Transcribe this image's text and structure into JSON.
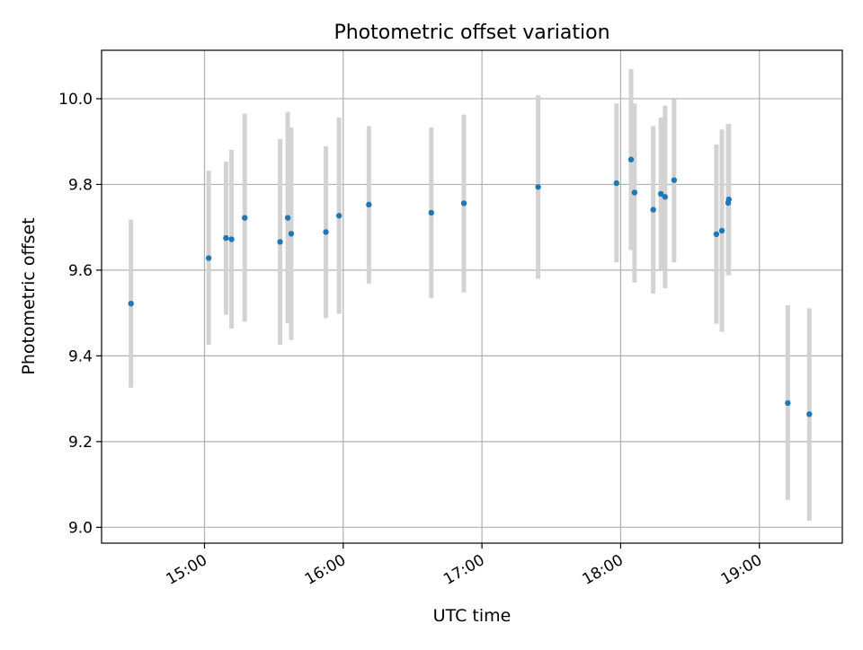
{
  "chart_data": {
    "type": "scatter",
    "title": "Photometric offset variation",
    "xlabel": "UTC time",
    "ylabel": "Photometric offset",
    "x_ticks": [
      {
        "value": 15,
        "label": "15:00"
      },
      {
        "value": 16,
        "label": "16:00"
      },
      {
        "value": 17,
        "label": "17:00"
      },
      {
        "value": 18,
        "label": "18:00"
      },
      {
        "value": 19,
        "label": "19:00"
      }
    ],
    "y_ticks": [
      {
        "value": 9.0,
        "label": "9.0"
      },
      {
        "value": 9.2,
        "label": "9.2"
      },
      {
        "value": 9.4,
        "label": "9.4"
      },
      {
        "value": 9.6,
        "label": "9.6"
      },
      {
        "value": 9.8,
        "label": "9.8"
      },
      {
        "value": 10.0,
        "label": "10.0"
      }
    ],
    "xlim": [
      14.258,
      19.598
    ],
    "ylim": [
      8.963,
      10.113
    ],
    "grid": true,
    "colors": {
      "point": "#1f77b4",
      "errorbar": "#d3d3d3",
      "grid": "#b0b0b0"
    },
    "points": [
      {
        "x": 14.47,
        "y": 9.522,
        "lo": 9.326,
        "hi": 9.718
      },
      {
        "x": 15.03,
        "y": 9.628,
        "lo": 9.426,
        "hi": 9.832
      },
      {
        "x": 15.155,
        "y": 9.675,
        "lo": 9.496,
        "hi": 9.853
      },
      {
        "x": 15.195,
        "y": 9.672,
        "lo": 9.464,
        "hi": 9.881
      },
      {
        "x": 15.29,
        "y": 9.722,
        "lo": 9.48,
        "hi": 9.965
      },
      {
        "x": 15.545,
        "y": 9.666,
        "lo": 9.426,
        "hi": 9.906
      },
      {
        "x": 15.6,
        "y": 9.722,
        "lo": 9.476,
        "hi": 9.969
      },
      {
        "x": 15.625,
        "y": 9.685,
        "lo": 9.437,
        "hi": 9.933
      },
      {
        "x": 15.875,
        "y": 9.689,
        "lo": 9.488,
        "hi": 9.889
      },
      {
        "x": 15.97,
        "y": 9.727,
        "lo": 9.498,
        "hi": 9.956
      },
      {
        "x": 16.185,
        "y": 9.753,
        "lo": 9.569,
        "hi": 9.936
      },
      {
        "x": 16.635,
        "y": 9.734,
        "lo": 9.535,
        "hi": 9.933
      },
      {
        "x": 16.87,
        "y": 9.756,
        "lo": 9.548,
        "hi": 9.963
      },
      {
        "x": 17.405,
        "y": 9.794,
        "lo": 9.58,
        "hi": 10.008
      },
      {
        "x": 17.97,
        "y": 9.803,
        "lo": 9.618,
        "hi": 9.989
      },
      {
        "x": 18.075,
        "y": 9.858,
        "lo": 9.647,
        "hi": 10.069
      },
      {
        "x": 18.1,
        "y": 9.781,
        "lo": 9.571,
        "hi": 9.989
      },
      {
        "x": 18.235,
        "y": 9.741,
        "lo": 9.545,
        "hi": 9.936
      },
      {
        "x": 18.29,
        "y": 9.778,
        "lo": 9.6,
        "hi": 9.956
      },
      {
        "x": 18.32,
        "y": 9.771,
        "lo": 9.558,
        "hi": 9.984
      },
      {
        "x": 18.385,
        "y": 9.81,
        "lo": 9.618,
        "hi": 9.999
      },
      {
        "x": 18.69,
        "y": 9.684,
        "lo": 9.475,
        "hi": 9.893
      },
      {
        "x": 18.73,
        "y": 9.692,
        "lo": 9.456,
        "hi": 9.928
      },
      {
        "x": 18.775,
        "y": 9.757,
        "lo": 9.588,
        "hi": 9.941
      },
      {
        "x": 18.78,
        "y": 9.765,
        "lo": 9.588,
        "hi": 9.941
      },
      {
        "x": 19.205,
        "y": 9.29,
        "lo": 9.064,
        "hi": 9.518
      },
      {
        "x": 19.36,
        "y": 9.264,
        "lo": 9.015,
        "hi": 9.511
      }
    ]
  }
}
